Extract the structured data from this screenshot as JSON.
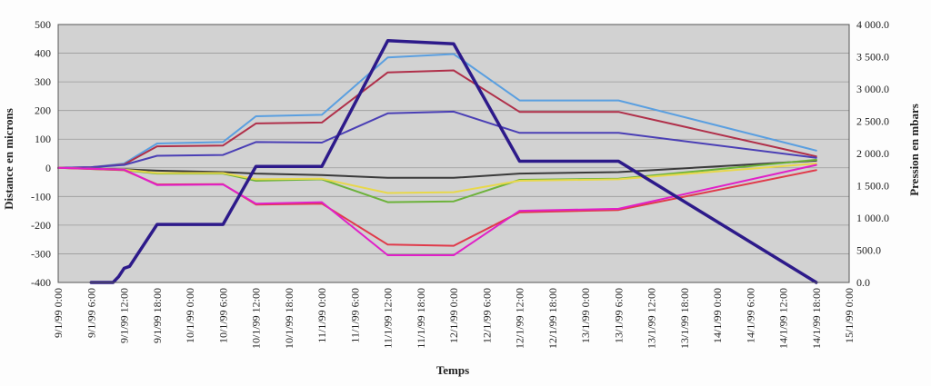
{
  "chart_data": {
    "type": "line",
    "title": "",
    "xlabel": "Temps",
    "ylabel": "Distance en microns",
    "y2label": "Pression en mbars",
    "x_ticks": [
      "9/1/99 0:00",
      "9/1/99 6:00",
      "9/1/99 12:00",
      "9/1/99 18:00",
      "10/1/99 0:00",
      "10/1/99 6:00",
      "10/1/99 12:00",
      "10/1/99 18:00",
      "11/1/99 0:00",
      "11/1/99 6:00",
      "11/1/99 12:00",
      "11/1/99 18:00",
      "12/1/99 0:00",
      "12/1/99 6:00",
      "12/1/99 12:00",
      "12/1/99 18:00",
      "13/1/99 0:00",
      "13/1/99 6:00",
      "13/1/99 12:00",
      "13/1/99 18:00",
      "14/1/99 0:00",
      "14/1/99 6:00",
      "14/1/99 12:00",
      "14/1/99 18:00",
      "15/1/99 0:00"
    ],
    "y_ticks": [
      "-400",
      "-300",
      "-200",
      "-100",
      "0",
      "100",
      "200",
      "300",
      "400",
      "500"
    ],
    "y2_ticks": [
      "0.0",
      "500.0",
      "1 000.0",
      "1 500.0",
      "2 000.0",
      "2 500.0",
      "3 000.0",
      "3 500.0",
      "4 000.0"
    ],
    "ylim": [
      -400,
      500
    ],
    "y2lim": [
      0,
      4000
    ],
    "x_unit": "hours since 9/1/99 0:00",
    "xlim": [
      0,
      144
    ],
    "grid": true,
    "legend": "none",
    "series": [
      {
        "axis": "left",
        "color": "#5a9fe0",
        "points": [
          [
            0,
            0
          ],
          [
            6,
            2
          ],
          [
            12,
            15
          ],
          [
            18,
            85
          ],
          [
            30,
            90
          ],
          [
            36,
            180
          ],
          [
            48,
            185
          ],
          [
            60,
            385
          ],
          [
            72,
            397
          ],
          [
            84,
            235
          ],
          [
            102,
            235
          ],
          [
            138,
            60
          ]
        ]
      },
      {
        "axis": "left",
        "color": "#b0304a",
        "points": [
          [
            0,
            0
          ],
          [
            6,
            2
          ],
          [
            12,
            12
          ],
          [
            18,
            75
          ],
          [
            30,
            78
          ],
          [
            36,
            155
          ],
          [
            48,
            158
          ],
          [
            60,
            333
          ],
          [
            72,
            340
          ],
          [
            84,
            195
          ],
          [
            102,
            195
          ],
          [
            138,
            40
          ]
        ]
      },
      {
        "axis": "left",
        "color": "#4a3fb5",
        "points": [
          [
            0,
            0
          ],
          [
            6,
            2
          ],
          [
            12,
            10
          ],
          [
            18,
            42
          ],
          [
            30,
            45
          ],
          [
            36,
            90
          ],
          [
            48,
            88
          ],
          [
            60,
            190
          ],
          [
            72,
            196
          ],
          [
            84,
            122
          ],
          [
            102,
            122
          ],
          [
            138,
            35
          ]
        ]
      },
      {
        "axis": "left",
        "color": "#3a3a3a",
        "points": [
          [
            0,
            0
          ],
          [
            12,
            -5
          ],
          [
            18,
            -10
          ],
          [
            30,
            -15
          ],
          [
            36,
            -20
          ],
          [
            48,
            -25
          ],
          [
            60,
            -35
          ],
          [
            72,
            -35
          ],
          [
            84,
            -20
          ],
          [
            102,
            -15
          ],
          [
            138,
            25
          ]
        ]
      },
      {
        "axis": "left",
        "color": "#6cb23a",
        "points": [
          [
            0,
            0
          ],
          [
            12,
            -8
          ],
          [
            18,
            -20
          ],
          [
            30,
            -20
          ],
          [
            36,
            -45
          ],
          [
            48,
            -40
          ],
          [
            60,
            -120
          ],
          [
            72,
            -117
          ],
          [
            84,
            -42
          ],
          [
            102,
            -38
          ],
          [
            138,
            28
          ]
        ]
      },
      {
        "axis": "left",
        "color": "#e8d84a",
        "points": [
          [
            0,
            0
          ],
          [
            12,
            -6
          ],
          [
            18,
            -18
          ],
          [
            30,
            -18
          ],
          [
            36,
            -40
          ],
          [
            48,
            -38
          ],
          [
            60,
            -88
          ],
          [
            72,
            -85
          ],
          [
            84,
            -45
          ],
          [
            102,
            -40
          ],
          [
            138,
            15
          ]
        ]
      },
      {
        "axis": "left",
        "color": "#e03a4a",
        "points": [
          [
            0,
            0
          ],
          [
            12,
            -8
          ],
          [
            18,
            -58
          ],
          [
            30,
            -57
          ],
          [
            36,
            -128
          ],
          [
            48,
            -125
          ],
          [
            60,
            -268
          ],
          [
            72,
            -272
          ],
          [
            84,
            -155
          ],
          [
            102,
            -147
          ],
          [
            138,
            -8
          ]
        ]
      },
      {
        "axis": "left",
        "color": "#e020c8",
        "points": [
          [
            0,
            0
          ],
          [
            12,
            -6
          ],
          [
            18,
            -60
          ],
          [
            30,
            -58
          ],
          [
            36,
            -125
          ],
          [
            48,
            -120
          ],
          [
            60,
            -305
          ],
          [
            72,
            -305
          ],
          [
            84,
            -150
          ],
          [
            102,
            -143
          ],
          [
            138,
            10
          ]
        ]
      },
      {
        "axis": "right",
        "color": "#2d1a8a",
        "points": [
          [
            6,
            0
          ],
          [
            10,
            0
          ],
          [
            11,
            90
          ],
          [
            12,
            220
          ],
          [
            13,
            250
          ],
          [
            18,
            900
          ],
          [
            30,
            900
          ],
          [
            36,
            1800
          ],
          [
            48,
            1800
          ],
          [
            60,
            3750
          ],
          [
            72,
            3700
          ],
          [
            84,
            1880
          ],
          [
            102,
            1880
          ],
          [
            138,
            0
          ]
        ]
      }
    ]
  }
}
